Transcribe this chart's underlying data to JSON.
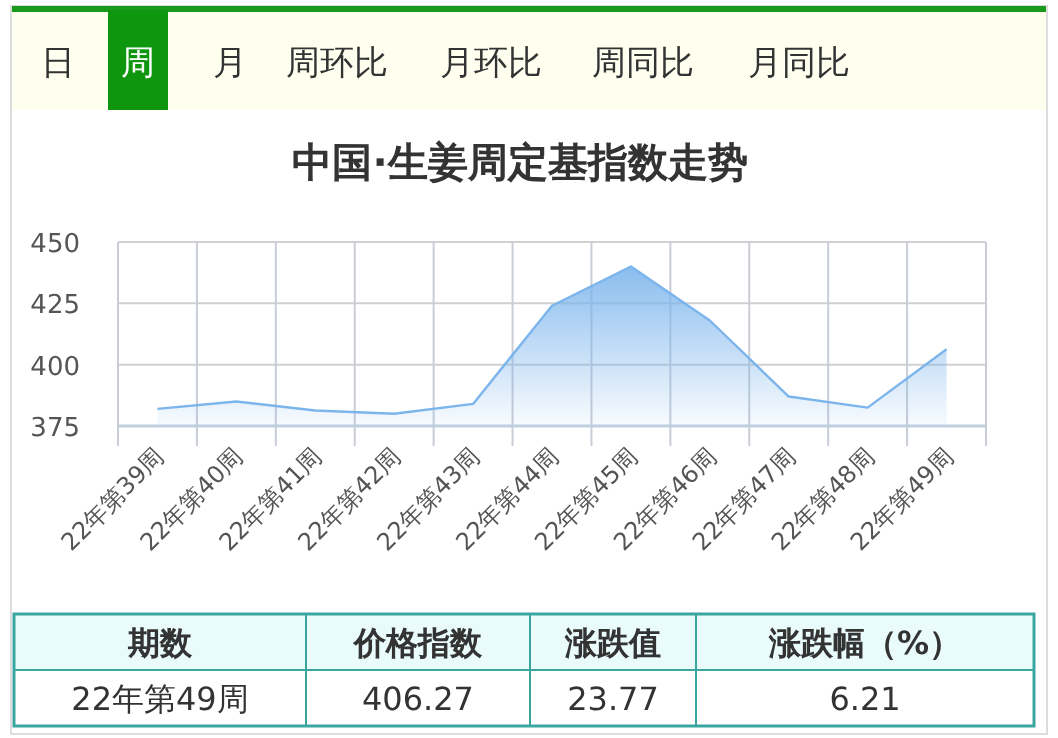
{
  "chart_data": {
    "type": "area",
    "title": "中国·生姜周定基指数走势",
    "categories": [
      "22年第39周",
      "22年第40周",
      "22年第41周",
      "22年第42周",
      "22年第43周",
      "22年第44周",
      "22年第45周",
      "22年第46周",
      "22年第47周",
      "22年第48周",
      "22年第49周"
    ],
    "values": [
      382,
      385,
      381.3,
      380,
      384,
      424,
      440,
      418,
      387,
      382.5,
      406.27
    ],
    "color": "#7cb5ec",
    "ylim": [
      375,
      450
    ],
    "yticks": [
      375,
      400,
      425,
      450
    ],
    "grid": true,
    "marker": "none",
    "annotations": [
      "日",
      "周",
      "月",
      "周环比",
      "月环比",
      "周同比",
      "月同比",
      "期数",
      "价格指数",
      "涨跌值",
      "涨跌幅（%）",
      "22年第49周",
      "406.27",
      "23.77",
      "6.21"
    ]
  }
}
